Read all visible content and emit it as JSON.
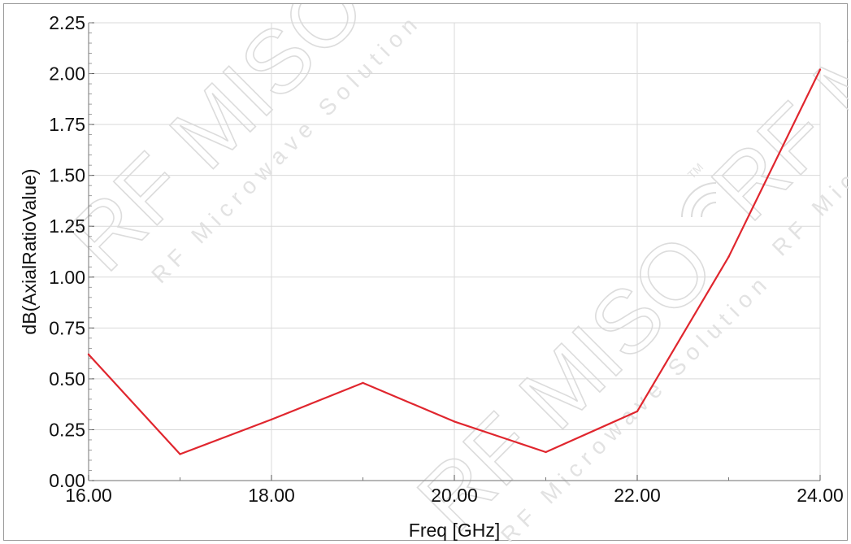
{
  "chart_data": {
    "type": "line",
    "title": "",
    "xlabel": "Freq [GHz]",
    "ylabel": "dB(AxialRatioValue)",
    "xlim": [
      16,
      24
    ],
    "ylim": [
      0,
      2.25
    ],
    "x_ticks": [
      16,
      18,
      20,
      22,
      24
    ],
    "x_tick_labels": [
      "16.00",
      "18.00",
      "20.00",
      "22.00",
      "24.00"
    ],
    "y_ticks": [
      0,
      0.25,
      0.5,
      0.75,
      1.0,
      1.25,
      1.5,
      1.75,
      2.0,
      2.25
    ],
    "y_tick_labels": [
      "0.00",
      "0.25",
      "0.50",
      "0.75",
      "1.00",
      "1.25",
      "1.50",
      "1.75",
      "2.00",
      "2.25"
    ],
    "x_minor_ticks": [
      17,
      19,
      21,
      23
    ],
    "y_minor_step": 0.05,
    "grid": true,
    "legend": "none",
    "colors": {
      "line": "#e0262e",
      "grid": "#d9d9d9",
      "axis": "#8c8c8c"
    },
    "series": [
      {
        "x": [
          16,
          17,
          18,
          19,
          20,
          21,
          22,
          23,
          24
        ],
        "y": [
          0.62,
          0.13,
          0.3,
          0.48,
          0.29,
          0.14,
          0.34,
          1.1,
          2.02
        ]
      }
    ]
  },
  "watermark": {
    "logo_text": "RF MISO",
    "tagline": "RF Microwave Solution",
    "trademark": "TM",
    "icon": "wifi-icon"
  }
}
